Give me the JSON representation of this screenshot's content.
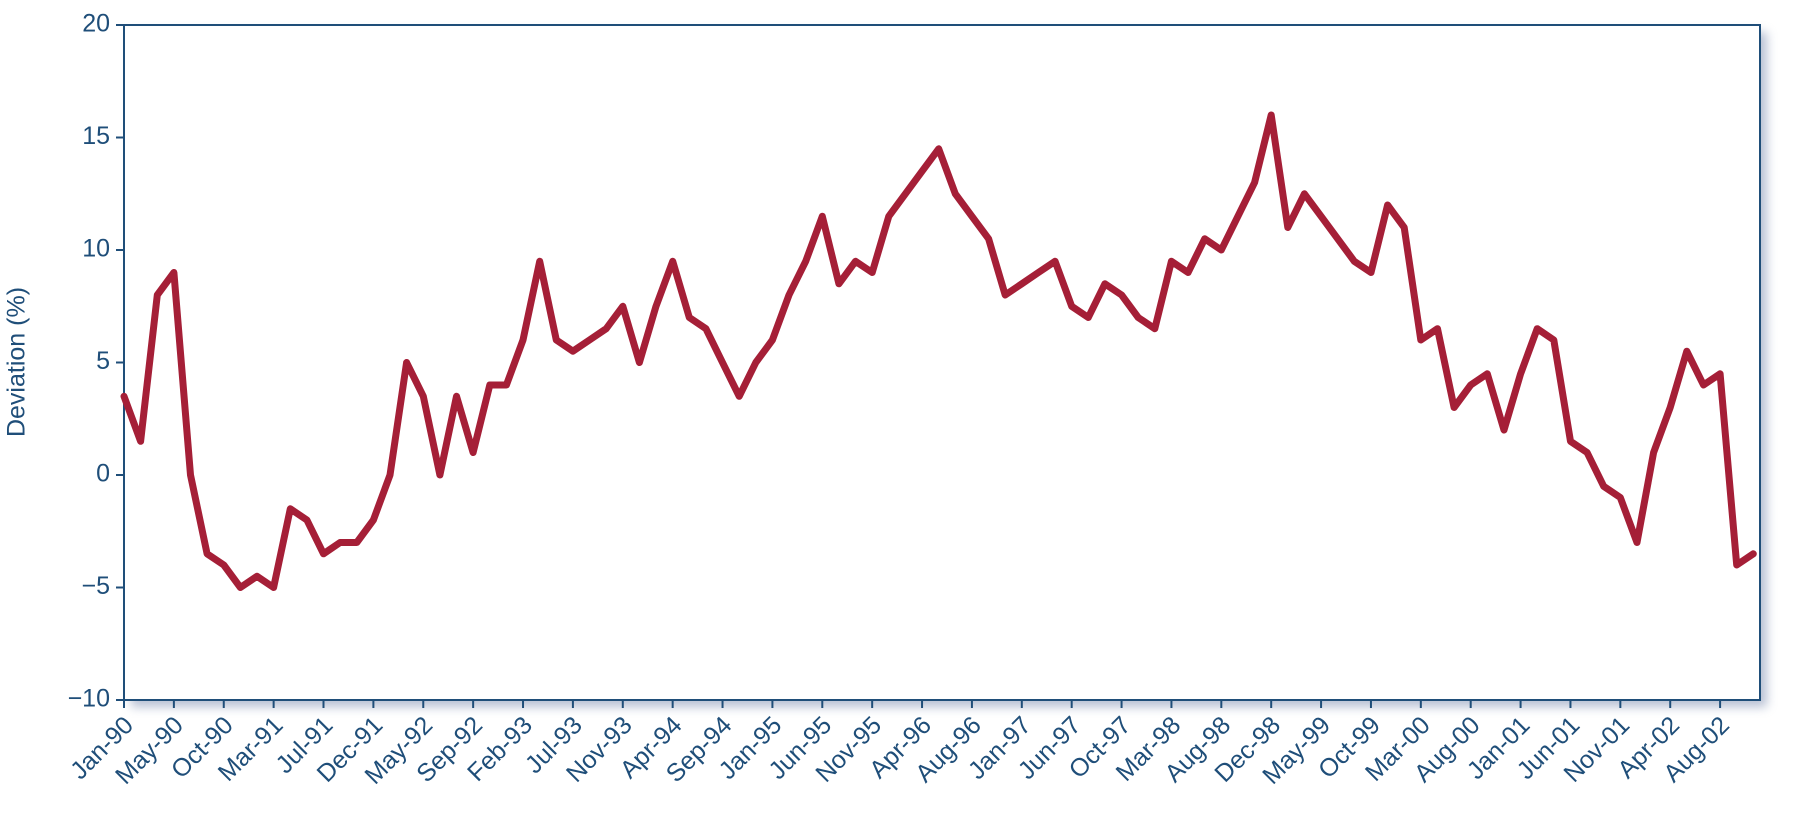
{
  "chart_data": {
    "type": "line",
    "y_label": "Deviation (%)",
    "categories": [
      "Jan-90",
      null,
      null,
      "May-90",
      null,
      null,
      "Oct-90",
      null,
      null,
      "Mar-91",
      null,
      null,
      "Jul-91",
      null,
      null,
      "Dec-91",
      null,
      null,
      "May-92",
      null,
      null,
      "Sep-92",
      null,
      null,
      "Feb-93",
      null,
      null,
      "Jul-93",
      null,
      null,
      "Nov-93",
      null,
      null,
      "Apr-94",
      null,
      null,
      "Sep-94",
      null,
      null,
      "Jan-95",
      null,
      null,
      "Jun-95",
      null,
      null,
      "Nov-95",
      null,
      null,
      "Apr-96",
      null,
      null,
      "Aug-96",
      null,
      null,
      "Jan-97",
      null,
      null,
      "Jun-97",
      null,
      null,
      "Oct-97",
      null,
      null,
      "Mar-98",
      null,
      null,
      "Aug-98",
      null,
      null,
      "Dec-98",
      null,
      null,
      "May-99",
      null,
      null,
      "Oct-99",
      null,
      null,
      "Mar-00",
      null,
      null,
      "Aug-00",
      null,
      null,
      "Jan-01",
      null,
      null,
      "Jun-01",
      null,
      null,
      "Nov-01",
      null,
      null,
      "Apr-02",
      null,
      null,
      "Aug-02",
      null,
      null
    ],
    "values": [
      3.5,
      1.5,
      8,
      9,
      0,
      -3.5,
      -4,
      -5,
      -4.5,
      -5,
      -1.5,
      -2,
      -3.5,
      -3,
      -3,
      -2,
      0,
      5,
      3.5,
      0,
      3.5,
      1,
      4,
      4,
      6,
      9.5,
      6,
      5.5,
      6,
      6.5,
      7.5,
      5,
      7.5,
      9.5,
      7,
      6.5,
      5,
      3.5,
      5,
      6,
      8,
      9.5,
      11.5,
      8.5,
      9.5,
      9,
      11.5,
      12.5,
      13.5,
      14.5,
      12.5,
      11.5,
      10.5,
      8,
      8.5,
      9,
      9.5,
      7.5,
      7,
      8.5,
      8,
      7,
      6.5,
      9.5,
      9,
      10.5,
      10,
      11.5,
      13,
      16,
      11,
      12.5,
      11.5,
      10.5,
      9.5,
      9,
      12,
      11,
      6,
      6.5,
      3,
      4,
      4.5,
      2,
      4.5,
      6.5,
      6,
      1.5,
      1,
      -0.5,
      -1,
      -3,
      1,
      3,
      5.5,
      4,
      4.5,
      -4,
      -3.5
    ],
    "color": "#a51f37",
    "ylim": [
      -10,
      20
    ],
    "yticks": [
      {
        "value": -10,
        "label": "−10"
      },
      {
        "value": -5,
        "label": "−5"
      },
      0,
      5,
      10,
      15,
      20
    ]
  }
}
